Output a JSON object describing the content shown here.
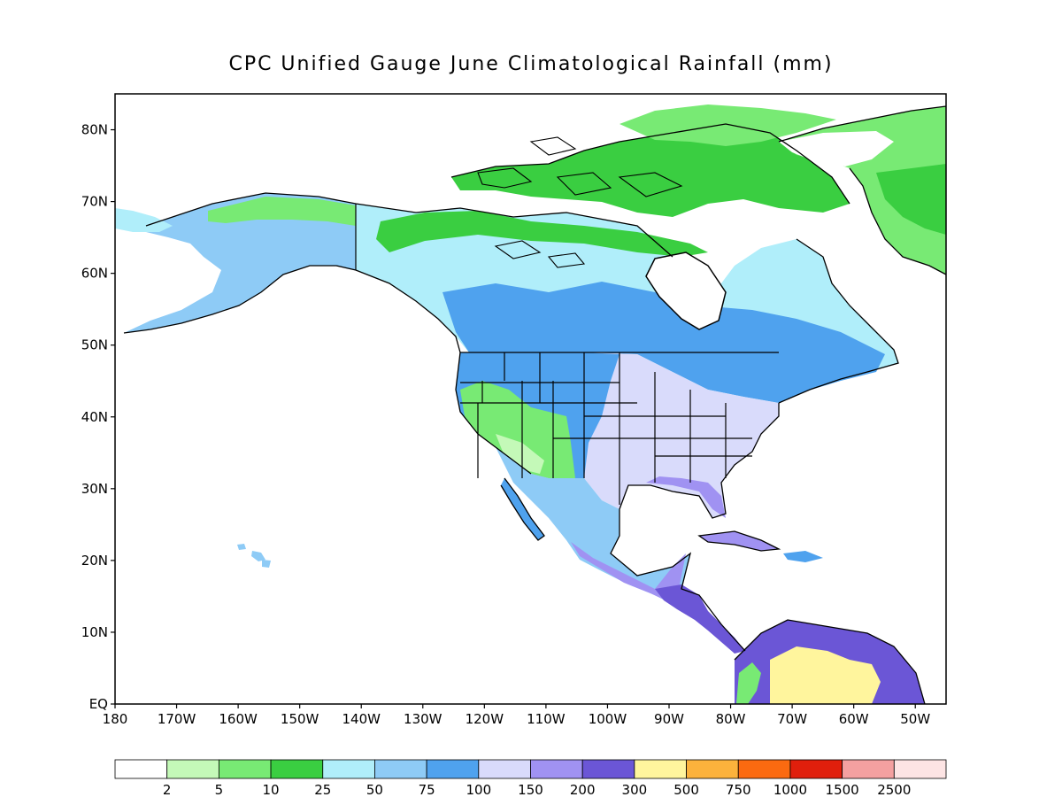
{
  "title": "CPC Unified Gauge June Climatological Rainfall (mm)",
  "lat_labels": [
    "80N",
    "70N",
    "60N",
    "50N",
    "40N",
    "30N",
    "20N",
    "10N",
    "EQ"
  ],
  "lon_labels": [
    "180",
    "170W",
    "160W",
    "150W",
    "140W",
    "130W",
    "120W",
    "110W",
    "100W",
    "90W",
    "80W",
    "70W",
    "60W",
    "50W"
  ],
  "colorbar": {
    "labels": [
      "2",
      "5",
      "10",
      "25",
      "50",
      "75",
      "100",
      "150",
      "200",
      "300",
      "500",
      "750",
      "1000",
      "1500",
      "2500"
    ],
    "colors": [
      "#ffffff",
      "#c4f9b8",
      "#78ea74",
      "#3ace41",
      "#b0eefa",
      "#8ecbf6",
      "#4fa2ee",
      "#d9dbfb",
      "#a092f2",
      "#6b56d6",
      "#fff59d",
      "#fcb23c",
      "#fb6a10",
      "#e01f0c",
      "#f4a0a0",
      "#fde4e4"
    ]
  },
  "regions": {
    "colors": {
      "land_default": "#8ecbf6",
      "greenland_east": "#78ea74",
      "greenland_south": "#3ace41",
      "arctic_islands": "#3ace41",
      "alaska_north": "#78ea74",
      "southwest_dry": "#78ea74",
      "southwest_desert": "#c4f9b8",
      "eastern_us": "#d9dbfb",
      "southeast_wet": "#a092f2",
      "mexico_wet": "#a092f2",
      "central_america": "#6b56d6",
      "south_america_wet": "#6b56d6",
      "south_america_yellow": "#fff59d",
      "canada_south": "#4fa2ee",
      "canada_north": "#b0eefa"
    }
  }
}
